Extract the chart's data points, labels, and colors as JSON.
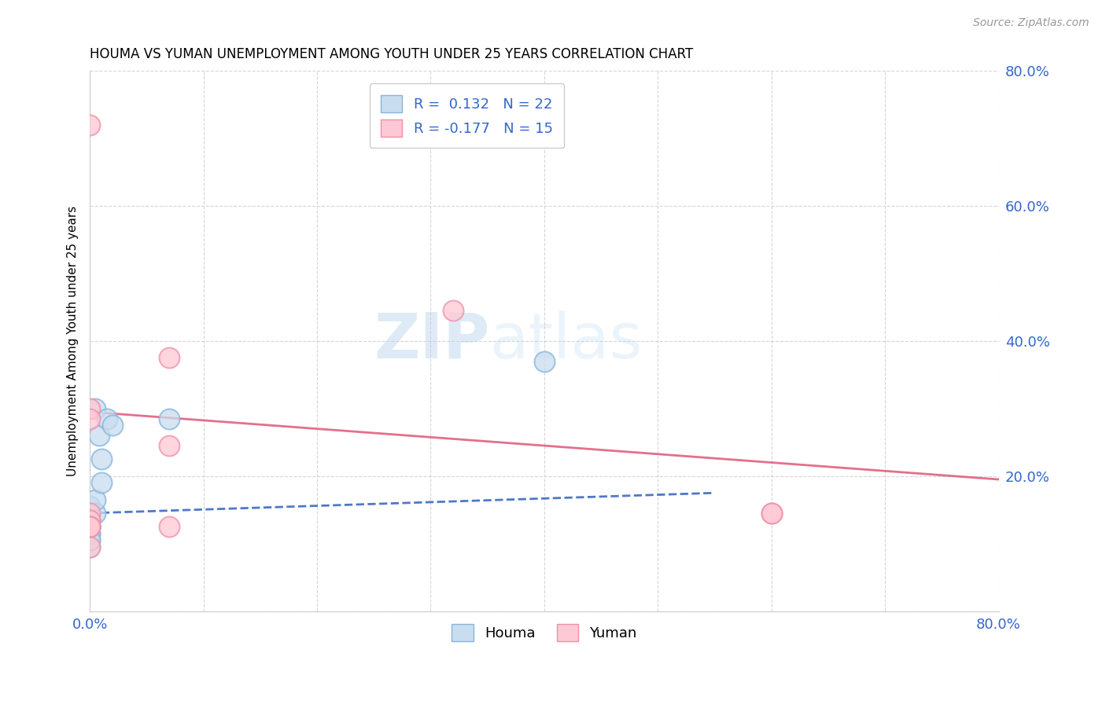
{
  "title": "HOUMA VS YUMAN UNEMPLOYMENT AMONG YOUTH UNDER 25 YEARS CORRELATION CHART",
  "source": "Source: ZipAtlas.com",
  "ylabel": "Unemployment Among Youth under 25 years",
  "xlim": [
    0.0,
    0.8
  ],
  "ylim": [
    0.0,
    0.8
  ],
  "xticks": [
    0.0,
    0.1,
    0.2,
    0.3,
    0.4,
    0.5,
    0.6,
    0.7,
    0.8
  ],
  "yticks": [
    0.0,
    0.2,
    0.4,
    0.6,
    0.8
  ],
  "houma_R": "0.132",
  "houma_N": "22",
  "yuman_R": "-0.177",
  "yuman_N": "15",
  "houma_face_color": "#c8ddf0",
  "houma_edge_color": "#8ab4d8",
  "yuman_face_color": "#ffc8d4",
  "yuman_edge_color": "#f090a8",
  "houma_line_color": "#3060c0",
  "yuman_line_color": "#e06080",
  "watermark_zip": "ZIP",
  "watermark_atlas": "atlas",
  "houma_x": [
    0.005,
    0.008,
    0.0,
    0.0,
    0.005,
    0.0,
    0.0,
    0.0,
    0.005,
    0.0,
    0.01,
    0.0,
    0.0,
    0.0,
    0.0,
    0.015,
    0.01,
    0.02,
    0.07,
    0.0,
    0.0,
    0.4
  ],
  "houma_y": [
    0.3,
    0.26,
    0.155,
    0.145,
    0.145,
    0.135,
    0.125,
    0.125,
    0.165,
    0.135,
    0.19,
    0.115,
    0.095,
    0.105,
    0.115,
    0.285,
    0.225,
    0.275,
    0.285,
    0.105,
    0.125,
    0.37
  ],
  "yuman_x": [
    0.0,
    0.0,
    0.0,
    0.0,
    0.07,
    0.07,
    0.32,
    0.6,
    0.6,
    0.07,
    0.0,
    0.0,
    0.0,
    0.0,
    0.0
  ],
  "yuman_y": [
    0.72,
    0.3,
    0.285,
    0.145,
    0.245,
    0.375,
    0.445,
    0.145,
    0.145,
    0.125,
    0.135,
    0.125,
    0.125,
    0.125,
    0.095
  ],
  "houma_line_x0": 0.0,
  "houma_line_y0": 0.145,
  "houma_line_x1": 0.55,
  "houma_line_y1": 0.175,
  "yuman_line_x0": 0.0,
  "yuman_line_y0": 0.295,
  "yuman_line_x1": 0.8,
  "yuman_line_y1": 0.195
}
